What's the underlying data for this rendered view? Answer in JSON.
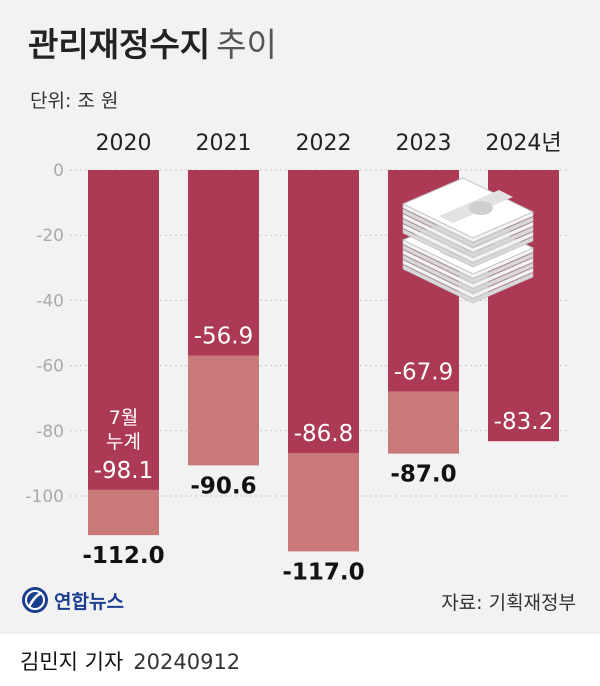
{
  "title": {
    "bold": "관리재정수지",
    "light": "추이"
  },
  "unit": "단위: 조 원",
  "source": "자료: 기획재정부",
  "logo": {
    "text": "연합뉴스"
  },
  "footer": {
    "author": "김민지 기자",
    "date": "20240912"
  },
  "colors": {
    "full_year": "#ad3a55",
    "through_july": "#c97a78",
    "gridline": "#c8c8c8"
  },
  "chart_data": {
    "type": "bar",
    "categories": [
      "2020",
      "2021",
      "2022",
      "2023",
      "2024년"
    ],
    "series": [
      {
        "values": [
          -112.0,
          -90.6,
          -117.0,
          -87.0,
          null
        ]
      },
      {
        "values": [
          -98.1,
          -56.9,
          -86.8,
          -67.9,
          -83.2
        ]
      }
    ],
    "labels_full": [
      "-112.0",
      "-90.6",
      "-117.0",
      "-87.0",
      ""
    ],
    "labels_july": [
      "-98.1",
      "-56.9",
      "-86.8",
      "-67.9",
      "-83.2"
    ],
    "annotation": [
      "7월",
      "누계"
    ],
    "ylim": [
      -120,
      0
    ],
    "yticks": [
      0,
      -20,
      -40,
      -60,
      -80,
      -100
    ],
    "ytick_labels": [
      "0",
      "-20",
      "-40",
      "-60",
      "-80",
      "-100"
    ],
    "grid": true
  }
}
